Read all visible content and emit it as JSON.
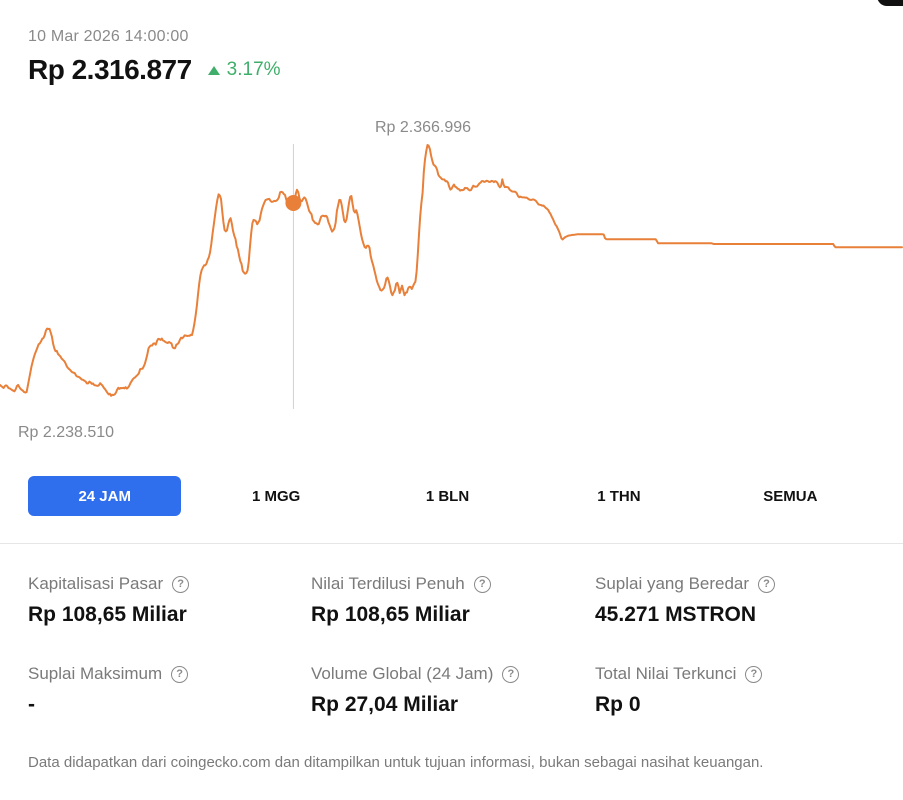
{
  "header": {
    "timestamp": "10 Mar 2026 14:00:00",
    "price": "Rp 2.316.877",
    "change": "3.17%",
    "change_direction": "up",
    "change_color": "#3fae6a"
  },
  "chart_data": {
    "type": "line",
    "line_color": "#e8803a",
    "high_label": "Rp 2.366.996",
    "low_label": "Rp 2.238.510",
    "ylim": [
      2238510,
      2366996
    ],
    "cursor_index": 243,
    "series": [
      {
        "values": [
          2250200,
          2249600,
          2249200,
          2248700,
          2249600,
          2250000,
          2249600,
          2248700,
          2248500,
          2248100,
          2247700,
          2247400,
          2247100,
          2248100,
          2249600,
          2250200,
          2249200,
          2248300,
          2247800,
          2247400,
          2246700,
          2246500,
          2246700,
          2249700,
          2252800,
          2255800,
          2258900,
          2261300,
          2263500,
          2265300,
          2266800,
          2268300,
          2269900,
          2270300,
          2271400,
          2272600,
          2273000,
          2274300,
          2276500,
          2277500,
          2277300,
          2277400,
          2275600,
          2273600,
          2270200,
          2268000,
          2266600,
          2266700,
          2265200,
          2264600,
          2264000,
          2263000,
          2262400,
          2261900,
          2261000,
          2259600,
          2258600,
          2258000,
          2257500,
          2256800,
          2256300,
          2256100,
          2255800,
          2254700,
          2254200,
          2254100,
          2253800,
          2253200,
          2252700,
          2252600,
          2252200,
          2251800,
          2250900,
          2250900,
          2251800,
          2251400,
          2250700,
          2250900,
          2250100,
          2250000,
          2249800,
          2249700,
          2250100,
          2251000,
          2250400,
          2249800,
          2248800,
          2248100,
          2247200,
          2246300,
          2245600,
          2245900,
          2244900,
          2245400,
          2245300,
          2245600,
          2246400,
          2247800,
          2248800,
          2248300,
          2248700,
          2248600,
          2248800,
          2248500,
          2249100,
          2248400,
          2248900,
          2249700,
          2251000,
          2252000,
          2252900,
          2253500,
          2253900,
          2254500,
          2255100,
          2255800,
          2257800,
          2258000,
          2258000,
          2259100,
          2260500,
          2262600,
          2264900,
          2267900,
          2268800,
          2269300,
          2269300,
          2270200,
          2270300,
          2269700,
          2271500,
          2272500,
          2272400,
          2272000,
          2272700,
          2271700,
          2271500,
          2271000,
          2270700,
          2270500,
          2271000,
          2270600,
          2270300,
          2268400,
          2268000,
          2268000,
          2269700,
          2270000,
          2270600,
          2272000,
          2273100,
          2272800,
          2273400,
          2274200,
          2274100,
          2273900,
          2274000,
          2274000,
          2274500,
          2274400,
          2276800,
          2279900,
          2283800,
          2288300,
          2294000,
          2299200,
          2303300,
          2305900,
          2307100,
          2308200,
          2308200,
          2309000,
          2310900,
          2312100,
          2314600,
          2318500,
          2323300,
          2327600,
          2331900,
          2336200,
          2339800,
          2342600,
          2342000,
          2340400,
          2334600,
          2329200,
          2325300,
          2324600,
          2325200,
          2328000,
          2330100,
          2331000,
          2328400,
          2324900,
          2322500,
          2321000,
          2317400,
          2315900,
          2312900,
          2310200,
          2308900,
          2305500,
          2304700,
          2304100,
          2304400,
          2305600,
          2309700,
          2317400,
          2323800,
          2328600,
          2330200,
          2330000,
          2329500,
          2328100,
          2329100,
          2330000,
          2333100,
          2335600,
          2337200,
          2338700,
          2339900,
          2340100,
          2340300,
          2340400,
          2339400,
          2338900,
          2339000,
          2339400,
          2339300,
          2339500,
          2340100,
          2341100,
          2343600,
          2343800,
          2343600,
          2342700,
          2342300,
          2340200,
          2338600,
          2338900,
          2339300,
          2339900,
          2339000,
          2338400,
          2338800,
          2342900,
          2344800,
          2343600,
          2340600,
          2339200,
          2339300,
          2340400,
          2341100,
          2340500,
          2338900,
          2336800,
          2334600,
          2333700,
          2333000,
          2330200,
          2329500,
          2328700,
          2328600,
          2328000,
          2328200,
          2330100,
          2331800,
          2332200,
          2332200,
          2331900,
          2332200,
          2331500,
          2329200,
          2327700,
          2326000,
          2324500,
          2325200,
          2326200,
          2329000,
          2334600,
          2337200,
          2339900,
          2339800,
          2337400,
          2333800,
          2330000,
          2329100,
          2330600,
          2334600,
          2338400,
          2341400,
          2341800,
          2337800,
          2334600,
          2333800,
          2334900,
          2333000,
          2330000,
          2326700,
          2323300,
          2320700,
          2318600,
          2317000,
          2316600,
          2317700,
          2317700,
          2316700,
          2312700,
          2310200,
          2308400,
          2305900,
          2303600,
          2300900,
          2299100,
          2297700,
          2296200,
          2295900,
          2296500,
          2297200,
          2299000,
          2301800,
          2302200,
          2300500,
          2298000,
          2295000,
          2293700,
          2295000,
          2296100,
          2299100,
          2299700,
          2297800,
          2294700,
          2296600,
          2298300,
          2295900,
          2293700,
          2294900,
          2295000,
          2297000,
          2297700,
          2297700,
          2296700,
          2298000,
          2299300,
          2300300,
          2305100,
          2313500,
          2323200,
          2332000,
          2338400,
          2343400,
          2353400,
          2359500,
          2363400,
          2366500,
          2366100,
          2364500,
          2361300,
          2358900,
          2357000,
          2356500,
          2355900,
          2354500,
          2352100,
          2351200,
          2350700,
          2350000,
          2349800,
          2349800,
          2348900,
          2349000,
          2348300,
          2346300,
          2344900,
          2345300,
          2346500,
          2347300,
          2346300,
          2346000,
          2345300,
          2345200,
          2344400,
          2344700,
          2344600,
          2344800,
          2345700,
          2345600,
          2345600,
          2344900,
          2344500,
          2344600,
          2345700,
          2346800,
          2346400,
          2346300,
          2346400,
          2347100,
          2347900,
          2348300,
          2349000,
          2349000,
          2348600,
          2348800,
          2349200,
          2349000,
          2348600,
          2348600,
          2349100,
          2349000,
          2348500,
          2349000,
          2348700,
          2348100,
          2346800,
          2346000,
          2346700,
          2349900,
          2347500,
          2346100,
          2346200,
          2346100,
          2345900,
          2344900,
          2344400,
          2344000,
          2343900,
          2343900,
          2343700,
          2343100,
          2341800,
          2341200,
          2341500,
          2341200,
          2341100,
          2341100,
          2341000,
          2341000,
          2340600,
          2340200,
          2339900,
          2339900,
          2340100,
          2340100,
          2339800,
          2339300,
          2338500,
          2337700,
          2337500,
          2337400,
          2337100,
          2337200,
          2336600,
          2336000,
          2335600,
          2335000,
          2333900,
          2333000,
          2331700,
          2330600,
          2329200,
          2327900,
          2327100,
          2325800,
          2324600,
          2322900,
          2321200,
          2320700,
          2321300,
          2321800,
          2322100,
          2322400,
          2322600,
          2322700,
          2322800,
          2322900,
          2322900,
          2323000,
          2323100,
          2323200,
          2323200,
          2323200,
          2323200,
          2323200,
          2323200,
          2323200,
          2323200,
          2323200,
          2323200,
          2323200,
          2323200,
          2323200,
          2323200,
          2323200,
          2323200,
          2323200,
          2323200,
          2323200,
          2323200,
          2323200,
          2323200,
          2323100,
          2321300,
          2320900,
          2320800,
          2320800,
          2320800,
          2320800,
          2320800,
          2320800,
          2320800,
          2320800,
          2320800,
          2320800,
          2320800,
          2320800,
          2320800,
          2320800,
          2320800,
          2320800,
          2320800,
          2320800,
          2320800,
          2320800,
          2320800,
          2320800,
          2320800,
          2320800,
          2320800,
          2320800,
          2320800,
          2320800,
          2320800,
          2320800,
          2320800,
          2320800,
          2320800,
          2320800,
          2320800,
          2320800,
          2320800,
          2320800,
          2320800,
          2320800,
          2320800,
          2319900,
          2318900,
          2318900,
          2318900,
          2318900,
          2318900,
          2318900,
          2318900,
          2318900,
          2318900,
          2318900,
          2318900,
          2318900,
          2318900,
          2318900,
          2318900,
          2318900,
          2318900,
          2318900,
          2318900,
          2318900,
          2318900,
          2318900,
          2318900,
          2318900,
          2318900,
          2318900,
          2318900,
          2318900,
          2318900,
          2318900,
          2318900,
          2318900,
          2318900,
          2318900,
          2318900,
          2318900,
          2318900,
          2318900,
          2318900,
          2318900,
          2318900,
          2318900,
          2318900,
          2318900,
          2318900,
          2318700,
          2318500,
          2318500,
          2318500,
          2318500,
          2318500,
          2318500,
          2318500,
          2318500,
          2318500,
          2318500,
          2318500,
          2318500,
          2318500,
          2318500,
          2318500,
          2318500,
          2318500,
          2318500,
          2318500,
          2318500,
          2318500,
          2318500,
          2318500,
          2318500,
          2318500,
          2318500,
          2318500,
          2318500,
          2318500,
          2318500,
          2318500,
          2318500,
          2318500,
          2318500,
          2318500,
          2318500,
          2318500,
          2318500,
          2318500,
          2318500,
          2318500,
          2318500,
          2318500,
          2318500,
          2318500,
          2318500,
          2318500,
          2318500,
          2318500,
          2318500,
          2318500,
          2318500,
          2318500,
          2318500,
          2318500,
          2318500,
          2318500,
          2318500,
          2318500,
          2318500,
          2318500,
          2318500,
          2318500,
          2318500,
          2318500,
          2318500,
          2318500,
          2318500,
          2318500,
          2318500,
          2318500,
          2318500,
          2318500,
          2318500,
          2318500,
          2318500,
          2318500,
          2318500,
          2318500,
          2318500,
          2318500,
          2318500,
          2318500,
          2318500,
          2318500,
          2318500,
          2318500,
          2318500,
          2318500,
          2318500,
          2318500,
          2318500,
          2318500,
          2318500,
          2318500,
          2318500,
          2318500,
          2318500,
          2318500,
          2318500,
          2317500,
          2316900,
          2316900,
          2316900,
          2316900,
          2316900,
          2316900,
          2316900,
          2316900,
          2316900,
          2316900,
          2316900,
          2316900,
          2316900,
          2316900,
          2316900,
          2316900,
          2316900,
          2316900,
          2316900,
          2316900,
          2316900,
          2316900,
          2316900,
          2316900,
          2316900,
          2316900,
          2316900,
          2316900,
          2316900,
          2316900,
          2316900,
          2316900,
          2316900,
          2316900,
          2316900,
          2316900,
          2316900,
          2316900,
          2316900,
          2316900,
          2316900,
          2316900,
          2316900,
          2316900,
          2316900,
          2316900,
          2316900,
          2316900,
          2316900,
          2316900,
          2316900,
          2316900,
          2316900,
          2316900,
          2316900,
          2316900
        ]
      }
    ]
  },
  "tabs": [
    {
      "label": "24 JAM",
      "active": true
    },
    {
      "label": "1 MGG",
      "active": false
    },
    {
      "label": "1 BLN",
      "active": false
    },
    {
      "label": "1 THN",
      "active": false
    },
    {
      "label": "SEMUA",
      "active": false
    }
  ],
  "stats": [
    {
      "label": "Kapitalisasi Pasar",
      "value": "Rp 108,65 Miliar"
    },
    {
      "label": "Nilai Terdilusi Penuh",
      "value": "Rp 108,65 Miliar"
    },
    {
      "label": "Suplai yang Beredar",
      "value": "45.271 MSTRON"
    },
    {
      "label": "Suplai Maksimum",
      "value": "-"
    },
    {
      "label": "Volume Global (24 Jam)",
      "value": "Rp 27,04 Miliar"
    },
    {
      "label": "Total Nilai Terkunci",
      "value": "Rp 0"
    }
  ],
  "info_icon": "question-circle-icon",
  "info_glyph": "?",
  "footer": "Data didapatkan dari coingecko.com dan ditampilkan untuk tujuan informasi, bukan sebagai nasihat keuangan."
}
